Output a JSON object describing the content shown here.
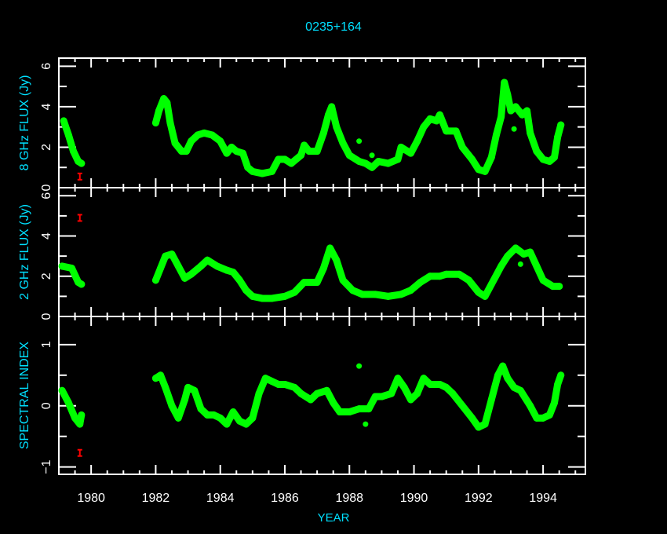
{
  "chart_data": {
    "type": "scatter",
    "title": "0235+164",
    "xlabel": "YEAR",
    "xlim": [
      1979.0,
      1995.31
    ],
    "xticks": [
      "1980",
      "1982",
      "1984",
      "1986",
      "1988",
      "1990",
      "1992",
      "1994"
    ],
    "grid": false,
    "colors": {
      "data": "#00ff00",
      "error_bar": "#ff0000",
      "labels": "#00e0ff",
      "axes": "#ffffff"
    },
    "panels": [
      {
        "ylabel": "8 GHz FLUX (Jy)",
        "ylim": [
          0,
          6.4
        ],
        "yticks": [
          {
            "v": 0,
            "label": "0"
          },
          {
            "v": 2,
            "label": "2"
          },
          {
            "v": 4,
            "label": "4"
          },
          {
            "v": 6,
            "label": "6"
          }
        ],
        "minor_step": 1,
        "error_bar": [
          1979.65,
          0.55
        ],
        "points": [
          [
            1979.15,
            3.3
          ],
          [
            1979.3,
            2.6
          ],
          [
            1979.45,
            1.8
          ],
          [
            1979.6,
            1.3
          ],
          [
            1979.7,
            1.2
          ],
          [
            1982.0,
            3.2
          ],
          [
            1982.1,
            3.8
          ],
          [
            1982.25,
            4.4
          ],
          [
            1982.35,
            4.2
          ],
          [
            1982.45,
            3.2
          ],
          [
            1982.6,
            2.2
          ],
          [
            1982.8,
            1.8
          ],
          [
            1982.95,
            1.8
          ],
          [
            1983.1,
            2.3
          ],
          [
            1983.3,
            2.6
          ],
          [
            1983.5,
            2.7
          ],
          [
            1983.75,
            2.6
          ],
          [
            1984.0,
            2.3
          ],
          [
            1984.2,
            1.7
          ],
          [
            1984.35,
            2.0
          ],
          [
            1984.5,
            1.8
          ],
          [
            1984.7,
            1.7
          ],
          [
            1984.85,
            1.0
          ],
          [
            1985.0,
            0.8
          ],
          [
            1985.3,
            0.7
          ],
          [
            1985.6,
            0.8
          ],
          [
            1985.8,
            1.4
          ],
          [
            1986.0,
            1.4
          ],
          [
            1986.2,
            1.2
          ],
          [
            1986.5,
            1.6
          ],
          [
            1986.6,
            2.1
          ],
          [
            1986.75,
            1.8
          ],
          [
            1987.0,
            1.8
          ],
          [
            1987.2,
            2.7
          ],
          [
            1987.35,
            3.6
          ],
          [
            1987.45,
            4.0
          ],
          [
            1987.6,
            3.0
          ],
          [
            1987.8,
            2.2
          ],
          [
            1988.0,
            1.6
          ],
          [
            1988.3,
            1.3
          ],
          [
            1988.5,
            1.2
          ],
          [
            1988.7,
            1.0
          ],
          [
            1988.9,
            1.3
          ],
          [
            1989.2,
            1.2
          ],
          [
            1989.5,
            1.4
          ],
          [
            1989.6,
            2.0
          ],
          [
            1989.9,
            1.7
          ],
          [
            1990.1,
            2.3
          ],
          [
            1990.3,
            3.0
          ],
          [
            1990.5,
            3.4
          ],
          [
            1990.7,
            3.3
          ],
          [
            1990.8,
            3.6
          ],
          [
            1991.0,
            2.8
          ],
          [
            1991.3,
            2.8
          ],
          [
            1991.5,
            2.0
          ],
          [
            1991.8,
            1.4
          ],
          [
            1992.0,
            0.9
          ],
          [
            1992.2,
            0.8
          ],
          [
            1992.4,
            1.5
          ],
          [
            1992.55,
            2.6
          ],
          [
            1992.7,
            3.5
          ],
          [
            1992.8,
            5.2
          ],
          [
            1992.9,
            4.6
          ],
          [
            1993.0,
            3.8
          ],
          [
            1993.15,
            4.0
          ],
          [
            1993.35,
            3.6
          ],
          [
            1993.5,
            3.8
          ],
          [
            1993.6,
            2.7
          ],
          [
            1993.8,
            1.8
          ],
          [
            1994.0,
            1.4
          ],
          [
            1994.2,
            1.3
          ],
          [
            1994.35,
            1.5
          ],
          [
            1994.45,
            2.5
          ],
          [
            1994.55,
            3.1
          ]
        ],
        "outliers": [
          [
            1988.3,
            2.3
          ],
          [
            1993.1,
            2.9
          ],
          [
            1988.7,
            1.6
          ]
        ]
      },
      {
        "ylabel": "2 GHz FLUX (Jy)",
        "ylim": [
          0,
          6.4
        ],
        "yticks": [
          {
            "v": 0,
            "label": "0"
          },
          {
            "v": 2,
            "label": "2"
          },
          {
            "v": 4,
            "label": "4"
          },
          {
            "v": 6,
            "label": "6"
          }
        ],
        "minor_step": 1,
        "error_bar": [
          1979.65,
          4.9
        ],
        "points": [
          [
            1979.1,
            2.5
          ],
          [
            1979.4,
            2.4
          ],
          [
            1979.6,
            1.7
          ],
          [
            1979.7,
            1.6
          ],
          [
            1982.0,
            1.8
          ],
          [
            1982.15,
            2.4
          ],
          [
            1982.3,
            3.0
          ],
          [
            1982.5,
            3.1
          ],
          [
            1982.7,
            2.5
          ],
          [
            1982.9,
            1.9
          ],
          [
            1983.1,
            2.1
          ],
          [
            1983.4,
            2.5
          ],
          [
            1983.6,
            2.8
          ],
          [
            1983.9,
            2.5
          ],
          [
            1984.2,
            2.3
          ],
          [
            1984.4,
            2.2
          ],
          [
            1984.6,
            1.8
          ],
          [
            1984.8,
            1.3
          ],
          [
            1985.0,
            1.0
          ],
          [
            1985.3,
            0.9
          ],
          [
            1985.6,
            0.9
          ],
          [
            1986.0,
            1.0
          ],
          [
            1986.3,
            1.2
          ],
          [
            1986.6,
            1.7
          ],
          [
            1987.0,
            1.7
          ],
          [
            1987.2,
            2.4
          ],
          [
            1987.4,
            3.4
          ],
          [
            1987.6,
            2.8
          ],
          [
            1987.8,
            1.8
          ],
          [
            1988.1,
            1.3
          ],
          [
            1988.4,
            1.1
          ],
          [
            1988.8,
            1.1
          ],
          [
            1989.2,
            1.0
          ],
          [
            1989.6,
            1.1
          ],
          [
            1989.9,
            1.3
          ],
          [
            1990.2,
            1.7
          ],
          [
            1990.5,
            2.0
          ],
          [
            1990.8,
            2.0
          ],
          [
            1991.0,
            2.1
          ],
          [
            1991.4,
            2.1
          ],
          [
            1991.7,
            1.8
          ],
          [
            1992.0,
            1.2
          ],
          [
            1992.2,
            1.0
          ],
          [
            1992.4,
            1.6
          ],
          [
            1992.7,
            2.5
          ],
          [
            1992.9,
            3.0
          ],
          [
            1993.15,
            3.4
          ],
          [
            1993.4,
            3.1
          ],
          [
            1993.6,
            3.2
          ],
          [
            1993.8,
            2.5
          ],
          [
            1994.0,
            1.8
          ],
          [
            1994.3,
            1.5
          ],
          [
            1994.5,
            1.5
          ]
        ],
        "outliers": [
          [
            1993.3,
            2.6
          ]
        ]
      },
      {
        "ylabel": "SPECTRAL INDEX",
        "ylim": [
          -1.12,
          1.46
        ],
        "yticks": [
          {
            "v": -1,
            "label": "−1"
          },
          {
            "v": 0,
            "label": "0"
          },
          {
            "v": 1,
            "label": "1"
          }
        ],
        "minor_step": 0.5,
        "error_bar": [
          1979.65,
          -0.77
        ],
        "points": [
          [
            1979.1,
            0.25
          ],
          [
            1979.3,
            0.05
          ],
          [
            1979.5,
            -0.2
          ],
          [
            1979.65,
            -0.3
          ],
          [
            1979.7,
            -0.15
          ],
          [
            1982.0,
            0.45
          ],
          [
            1982.15,
            0.5
          ],
          [
            1982.3,
            0.3
          ],
          [
            1982.5,
            0.0
          ],
          [
            1982.7,
            -0.2
          ],
          [
            1982.9,
            0.1
          ],
          [
            1983.0,
            0.3
          ],
          [
            1983.2,
            0.25
          ],
          [
            1983.4,
            -0.05
          ],
          [
            1983.6,
            -0.15
          ],
          [
            1983.8,
            -0.15
          ],
          [
            1984.0,
            -0.2
          ],
          [
            1984.2,
            -0.3
          ],
          [
            1984.4,
            -0.1
          ],
          [
            1984.6,
            -0.25
          ],
          [
            1984.8,
            -0.3
          ],
          [
            1985.0,
            -0.2
          ],
          [
            1985.2,
            0.2
          ],
          [
            1985.4,
            0.45
          ],
          [
            1985.6,
            0.4
          ],
          [
            1985.8,
            0.35
          ],
          [
            1986.0,
            0.35
          ],
          [
            1986.3,
            0.3
          ],
          [
            1986.5,
            0.2
          ],
          [
            1986.8,
            0.1
          ],
          [
            1987.0,
            0.2
          ],
          [
            1987.3,
            0.25
          ],
          [
            1987.5,
            0.05
          ],
          [
            1987.7,
            -0.1
          ],
          [
            1988.0,
            -0.1
          ],
          [
            1988.3,
            -0.05
          ],
          [
            1988.6,
            -0.05
          ],
          [
            1988.8,
            0.15
          ],
          [
            1989.0,
            0.15
          ],
          [
            1989.3,
            0.2
          ],
          [
            1989.5,
            0.45
          ],
          [
            1989.7,
            0.3
          ],
          [
            1989.9,
            0.1
          ],
          [
            1990.1,
            0.2
          ],
          [
            1990.3,
            0.45
          ],
          [
            1990.5,
            0.35
          ],
          [
            1990.8,
            0.35
          ],
          [
            1991.0,
            0.3
          ],
          [
            1991.2,
            0.2
          ],
          [
            1991.5,
            0.0
          ],
          [
            1991.8,
            -0.2
          ],
          [
            1992.0,
            -0.35
          ],
          [
            1992.2,
            -0.3
          ],
          [
            1992.4,
            0.1
          ],
          [
            1992.6,
            0.5
          ],
          [
            1992.75,
            0.65
          ],
          [
            1992.9,
            0.45
          ],
          [
            1993.1,
            0.3
          ],
          [
            1993.3,
            0.25
          ],
          [
            1993.6,
            0.0
          ],
          [
            1993.8,
            -0.2
          ],
          [
            1994.0,
            -0.2
          ],
          [
            1994.2,
            -0.15
          ],
          [
            1994.35,
            0.05
          ],
          [
            1994.45,
            0.35
          ],
          [
            1994.55,
            0.5
          ]
        ],
        "outliers": [
          [
            1988.3,
            0.65
          ],
          [
            1988.5,
            -0.3
          ]
        ]
      }
    ]
  }
}
